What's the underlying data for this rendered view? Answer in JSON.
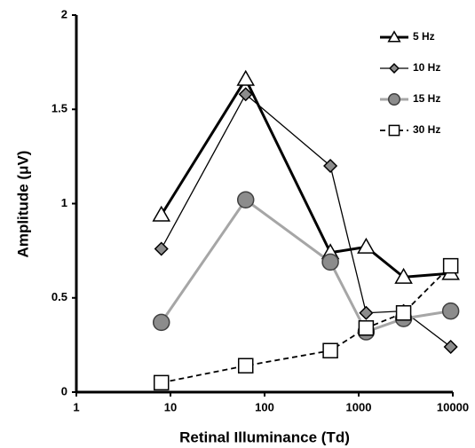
{
  "chart_data": {
    "type": "line",
    "xlabel": "Retinal Illuminance (Td)",
    "ylabel": "Amplitude (μV)",
    "xscale": "log",
    "xlim": [
      1,
      10000
    ],
    "xticks": [
      1,
      10,
      100,
      1000,
      10000
    ],
    "ylim": [
      0,
      2
    ],
    "yticks": [
      0,
      0.5,
      1,
      1.5,
      2
    ],
    "legend": "upper right",
    "series": [
      {
        "name": "5 Hz",
        "color": "#000000",
        "marker": "triangle",
        "marker_fill": "#ffffff",
        "line_width": 3,
        "dashed": false,
        "x": [
          8,
          63,
          500,
          1200,
          3000,
          9500
        ],
        "values": [
          0.94,
          1.66,
          0.74,
          0.77,
          0.61,
          0.63
        ]
      },
      {
        "name": "10 Hz",
        "color": "#000000",
        "marker": "diamond",
        "marker_fill": "#8c8c8c",
        "line_width": 1.3,
        "dashed": false,
        "x": [
          8,
          63,
          500,
          1200,
          3000,
          9500
        ],
        "values": [
          0.76,
          1.58,
          1.2,
          0.42,
          0.43,
          0.24
        ]
      },
      {
        "name": "15 Hz",
        "color": "#a6a6a6",
        "marker": "circle",
        "marker_fill": "#8c8c8c",
        "line_width": 3,
        "dashed": false,
        "x": [
          8,
          63,
          500,
          1200,
          3000,
          9500
        ],
        "values": [
          0.37,
          1.02,
          0.69,
          0.32,
          0.39,
          0.43
        ]
      },
      {
        "name": "30 Hz",
        "color": "#000000",
        "marker": "square",
        "marker_fill": "#ffffff",
        "line_width": 1.8,
        "dashed": true,
        "x": [
          8,
          63,
          500,
          1200,
          3000,
          9500
        ],
        "values": [
          0.05,
          0.14,
          0.22,
          0.34,
          0.42,
          0.67
        ]
      }
    ]
  }
}
